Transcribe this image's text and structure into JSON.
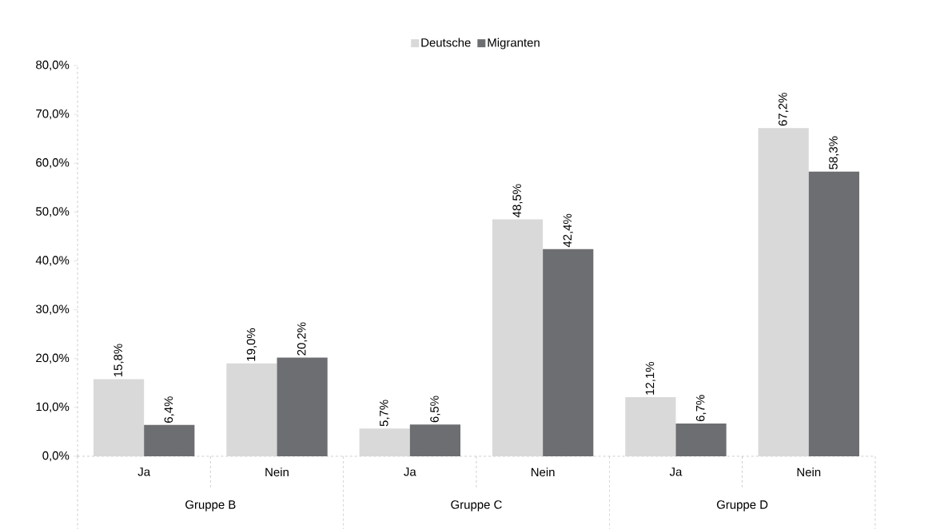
{
  "chart_data": {
    "type": "bar",
    "categories": [
      "Ja",
      "Nein",
      "Ja",
      "Nein",
      "Ja",
      "Nein"
    ],
    "series": [
      {
        "name": "Deutsche",
        "color": "#d9d9d9",
        "values": [
          15.8,
          19.0,
          5.7,
          48.5,
          12.1,
          67.2
        ],
        "value_labels": [
          "15,8%",
          "19,0%",
          "5,7%",
          "48,5%",
          "12,1%",
          "67,2%"
        ]
      },
      {
        "name": "Migranten",
        "color": "#6d6e71",
        "values": [
          6.4,
          20.2,
          6.5,
          42.4,
          6.7,
          58.3
        ],
        "value_labels": [
          "6,4%",
          "20,2%",
          "6,5%",
          "42,4%",
          "6,7%",
          "58,3%"
        ]
      }
    ],
    "ylim": [
      0,
      80
    ],
    "yticks": [
      {
        "value": 0,
        "label": "0,0%"
      },
      {
        "value": 10,
        "label": "10,0%"
      },
      {
        "value": 20,
        "label": "20,0%"
      },
      {
        "value": 30,
        "label": "30,0%"
      },
      {
        "value": 40,
        "label": "40,0%"
      },
      {
        "value": 50,
        "label": "50,0%"
      },
      {
        "value": 60,
        "label": "60,0%"
      },
      {
        "value": 70,
        "label": "70,0%"
      },
      {
        "value": 80,
        "label": "80,0%"
      }
    ],
    "annotations": [
      "Gruppe B",
      "Gruppe C",
      "Gruppe D"
    ],
    "legend": "top"
  }
}
